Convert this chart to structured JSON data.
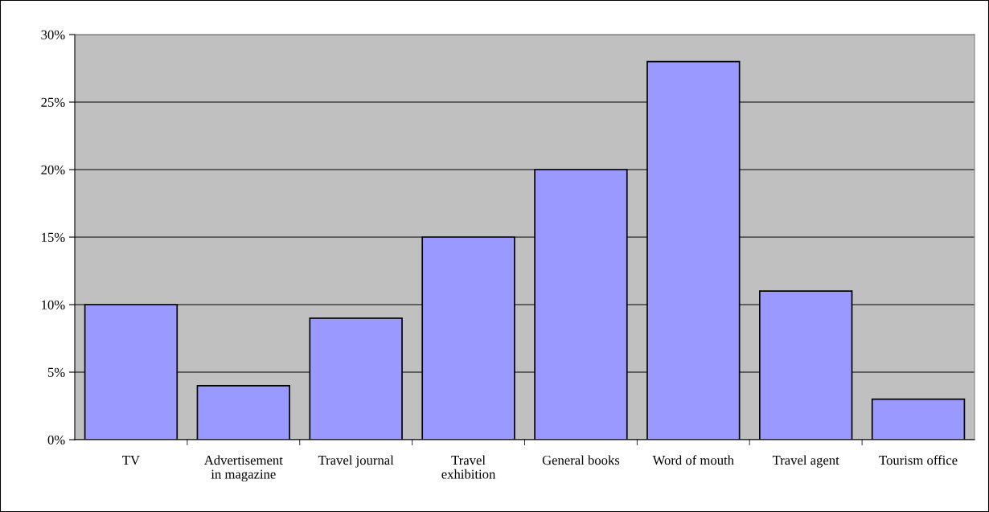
{
  "chart_data": {
    "type": "bar",
    "categories": [
      "TV",
      "Advertisement\nin magazine",
      "Travel journal",
      "Travel\nexhibition",
      "General books",
      "Word of mouth",
      "Travel agent",
      "Tourism office"
    ],
    "values": [
      10,
      4,
      9,
      15,
      20,
      28,
      11,
      3
    ],
    "color": "#9999ff",
    "ylim": [
      0,
      30
    ],
    "yticks": [
      {
        "value": 0,
        "label": "0%"
      },
      {
        "value": 5,
        "label": "5%"
      },
      {
        "value": 10,
        "label": "10%"
      },
      {
        "value": 15,
        "label": "15%"
      },
      {
        "value": 20,
        "label": "20%"
      },
      {
        "value": 25,
        "label": "25%"
      },
      {
        "value": 30,
        "label": "30%"
      }
    ],
    "grid": "y"
  }
}
